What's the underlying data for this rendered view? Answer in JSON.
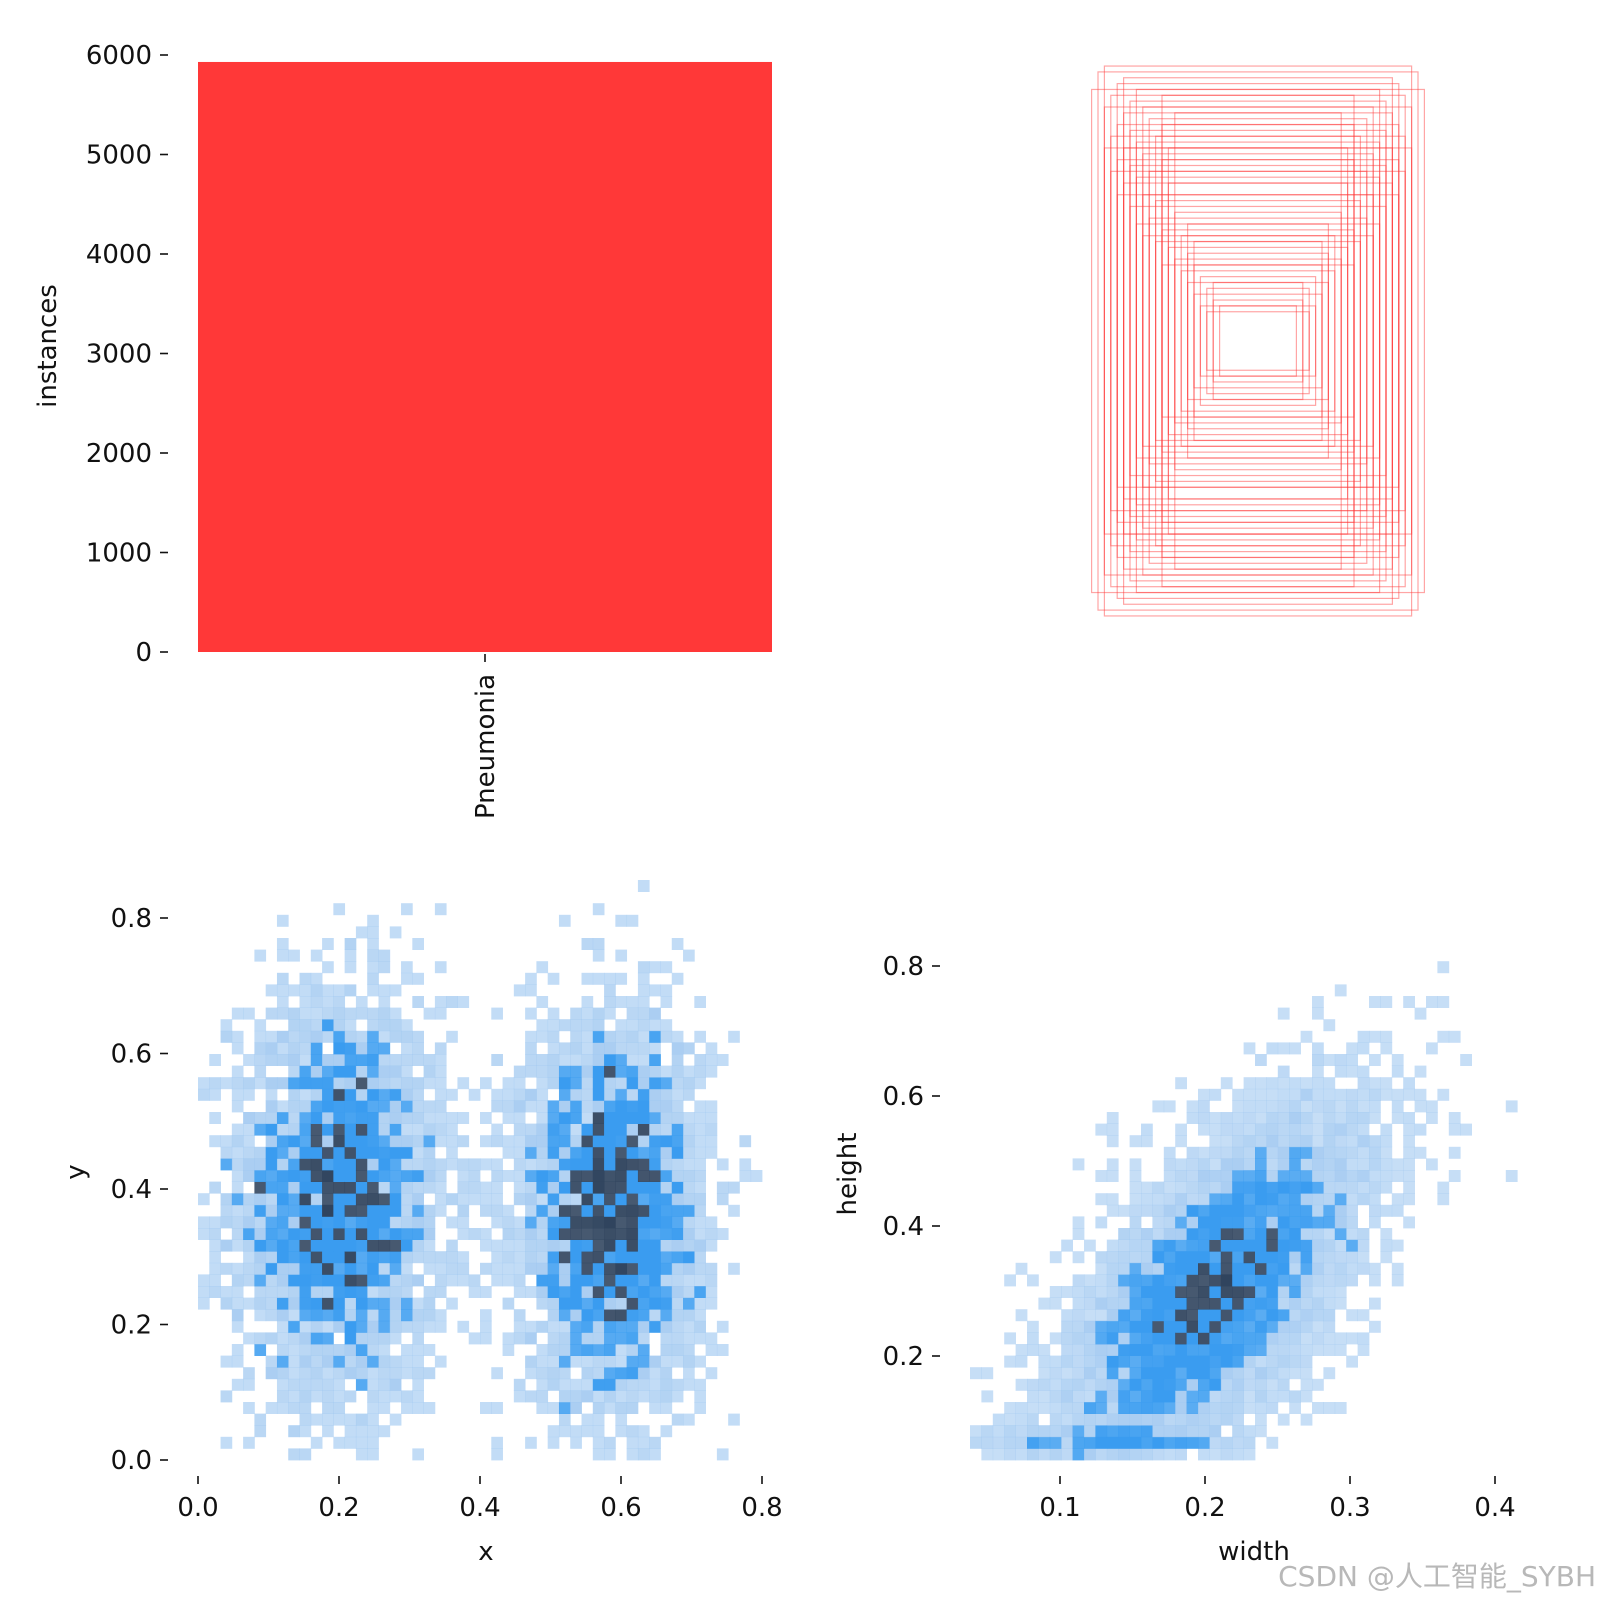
{
  "colors": {
    "bar": "#ff3838",
    "box_stroke": "#ff3838",
    "hist_light": "#9ec7f0",
    "hist_mid": "#3a9cf0",
    "hist_dark": "#30445e"
  },
  "watermark": "CSDN @人工智能_SYBH",
  "chart_data": [
    {
      "id": "instances",
      "type": "bar",
      "categories": [
        "Pneumonia"
      ],
      "values": [
        5930
      ],
      "title": "",
      "xlabel": "",
      "ylabel": "instances",
      "ylim": [
        0,
        6000
      ],
      "yticks": [
        0,
        1000,
        2000,
        3000,
        4000,
        5000,
        6000
      ],
      "ytick_labels": [
        "0",
        "1000",
        "2000",
        "3000",
        "4000",
        "5000",
        "6000"
      ],
      "grid": false,
      "legend": "none"
    },
    {
      "id": "boxes",
      "type": "scatter",
      "description_kind": "label box outlines centered at (0.5,0.5), width × height in normalized units",
      "boxes": [
        [
          0.42,
          0.9
        ],
        [
          0.38,
          0.86
        ],
        [
          0.4,
          0.82
        ],
        [
          0.44,
          0.88
        ],
        [
          0.36,
          0.8
        ],
        [
          0.46,
          0.84
        ],
        [
          0.34,
          0.76
        ],
        [
          0.42,
          0.78
        ],
        [
          0.48,
          0.8
        ],
        [
          0.32,
          0.7
        ],
        [
          0.4,
          0.72
        ],
        [
          0.44,
          0.74
        ],
        [
          0.38,
          0.68
        ],
        [
          0.36,
          0.64
        ],
        [
          0.42,
          0.66
        ],
        [
          0.3,
          0.62
        ],
        [
          0.46,
          0.7
        ],
        [
          0.4,
          0.6
        ],
        [
          0.34,
          0.58
        ],
        [
          0.44,
          0.62
        ],
        [
          0.38,
          0.56
        ],
        [
          0.28,
          0.54
        ],
        [
          0.42,
          0.54
        ],
        [
          0.36,
          0.5
        ],
        [
          0.32,
          0.48
        ],
        [
          0.4,
          0.46
        ],
        [
          0.26,
          0.44
        ],
        [
          0.34,
          0.42
        ],
        [
          0.3,
          0.38
        ],
        [
          0.38,
          0.4
        ],
        [
          0.24,
          0.36
        ],
        [
          0.28,
          0.32
        ],
        [
          0.22,
          0.3
        ],
        [
          0.32,
          0.34
        ],
        [
          0.26,
          0.28
        ],
        [
          0.2,
          0.26
        ],
        [
          0.24,
          0.24
        ],
        [
          0.18,
          0.22
        ],
        [
          0.22,
          0.2
        ],
        [
          0.16,
          0.18
        ],
        [
          0.2,
          0.16
        ],
        [
          0.14,
          0.14
        ],
        [
          0.18,
          0.12
        ],
        [
          0.12,
          0.12
        ],
        [
          0.16,
          0.1
        ],
        [
          0.5,
          0.92
        ],
        [
          0.52,
          0.86
        ],
        [
          0.48,
          0.94
        ],
        [
          0.3,
          0.84
        ],
        [
          0.26,
          0.78
        ],
        [
          0.46,
          0.58
        ],
        [
          0.48,
          0.66
        ],
        [
          0.3,
          0.74
        ],
        [
          0.28,
          0.66
        ],
        [
          0.44,
          0.5
        ],
        [
          0.22,
          0.4
        ],
        [
          0.36,
          0.36
        ],
        [
          0.2,
          0.34
        ],
        [
          0.3,
          0.26
        ],
        [
          0.14,
          0.2
        ]
      ],
      "grid": false,
      "legend": "none"
    },
    {
      "id": "xy",
      "type": "heatmap",
      "xlabel": "x",
      "ylabel": "y",
      "xlim": [
        0.0,
        0.8
      ],
      "ylim": [
        0.0,
        0.8
      ],
      "xticks": [
        0.0,
        0.2,
        0.4,
        0.6,
        0.8
      ],
      "xtick_labels": [
        "0.0",
        "0.2",
        "0.4",
        "0.6",
        "0.8"
      ],
      "yticks": [
        0.0,
        0.2,
        0.4,
        0.6,
        0.8
      ],
      "ytick_labels": [
        "0.0",
        "0.2",
        "0.4",
        "0.6",
        "0.8"
      ],
      "clusters": [
        {
          "cx": 0.2,
          "cy": 0.36,
          "sx": 0.075,
          "sy": 0.14,
          "n": 2950
        },
        {
          "cx": 0.585,
          "cy": 0.34,
          "sx": 0.065,
          "sy": 0.135,
          "n": 2950
        }
      ],
      "bins": 50,
      "grid": false,
      "legend": "none"
    },
    {
      "id": "wh",
      "type": "heatmap",
      "xlabel": "width",
      "ylabel": "height",
      "xlim": [
        0.03,
        0.43
      ],
      "ylim": [
        0.05,
        0.85
      ],
      "xticks": [
        0.1,
        0.2,
        0.3,
        0.4
      ],
      "xtick_labels": [
        "0.1",
        "0.2",
        "0.3",
        "0.4"
      ],
      "yticks": [
        0.2,
        0.4,
        0.6,
        0.8
      ],
      "ytick_labels": [
        "0.2",
        "0.4",
        "0.6",
        "0.8"
      ],
      "distribution": {
        "mean_w": 0.2,
        "mean_h": 0.28,
        "sd_w": 0.055,
        "sd_h": 0.13,
        "corr": 0.65,
        "n": 5900
      },
      "bins": 50,
      "grid": false,
      "legend": "none"
    }
  ]
}
